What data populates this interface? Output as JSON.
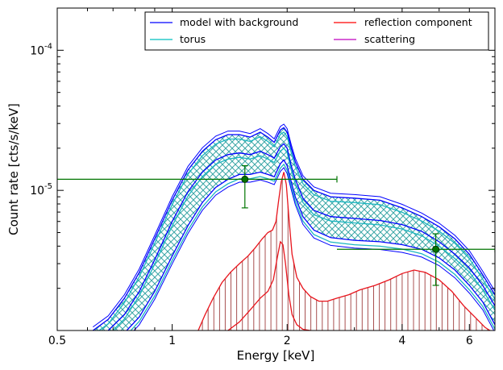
{
  "chart_data": {
    "type": "line",
    "xlabel": "Energy [keV]",
    "ylabel": "Count rate [cts/s/keV]",
    "x_scale": "log",
    "y_scale": "log",
    "xlim": [
      0.5,
      7.0
    ],
    "ylim": [
      1e-06,
      0.0002
    ],
    "x_ticks": [
      {
        "value": 0.5,
        "label": "0.5"
      },
      {
        "value": 1,
        "label": "1"
      },
      {
        "value": 2,
        "label": "2"
      },
      {
        "value": 4,
        "label": "4"
      },
      {
        "value": 6,
        "label": "6"
      }
    ],
    "y_ticks": [
      {
        "value": 1e-05,
        "mant": "10",
        "exp": "-5"
      },
      {
        "value": 0.0001,
        "mant": "10",
        "exp": "-4"
      }
    ],
    "legend": {
      "placement": "top-right",
      "columns": 2,
      "entries": [
        {
          "label": "model with background",
          "color": "#0000ff"
        },
        {
          "label": "reflection component",
          "color": "#ff0000"
        },
        {
          "label": "torus",
          "color": "#00bfbf"
        },
        {
          "label": "scattering",
          "color": "#bf00bf"
        }
      ]
    },
    "colors": {
      "model": "#0000ff",
      "torus": "#1ab6c0",
      "reflection": "#e8141c",
      "reflection_fill": "#a85050",
      "hatch": "#3aa6a6",
      "data": "#007500"
    },
    "series": [
      {
        "name": "model with background",
        "role": "upper",
        "x": [
          0.62,
          0.68,
          0.75,
          0.82,
          0.9,
          1.0,
          1.1,
          1.2,
          1.3,
          1.4,
          1.5,
          1.6,
          1.7,
          1.78,
          1.85,
          1.92,
          1.96,
          2.0,
          2.05,
          2.1,
          2.2,
          2.35,
          2.6,
          3.0,
          3.5,
          4.0,
          4.5,
          5.0,
          5.5,
          6.0,
          6.5,
          7.0
        ],
        "y": [
          1e-06,
          1.2e-06,
          1.7e-06,
          2.6e-06,
          4.5e-06,
          8.5e-06,
          1.4e-05,
          1.9e-05,
          2.3e-05,
          2.5e-05,
          2.5e-05,
          2.4e-05,
          2.6e-05,
          2.4e-05,
          2.2e-05,
          2.7e-05,
          2.8e-05,
          2.6e-05,
          2e-05,
          1.6e-05,
          1.2e-05,
          1e-05,
          9e-06,
          8.8e-06,
          8.5e-06,
          7.5e-06,
          6.5e-06,
          5.5e-06,
          4.5e-06,
          3.5e-06,
          2.5e-06,
          1.8e-06
        ]
      },
      {
        "name": "model with background",
        "role": "lower",
        "x": [
          0.76,
          0.82,
          0.9,
          1.0,
          1.1,
          1.2,
          1.3,
          1.4,
          1.5,
          1.6,
          1.7,
          1.78,
          1.85,
          1.92,
          1.96,
          2.0,
          2.05,
          2.1,
          2.2,
          2.35,
          2.6,
          3.0,
          3.5,
          4.0,
          4.5,
          5.0,
          5.5,
          6.0,
          6.5,
          7.0
        ],
        "y": [
          1e-06,
          1.25e-06,
          1.9e-06,
          3.4e-06,
          5.6e-06,
          8.2e-06,
          1.05e-05,
          1.2e-05,
          1.3e-05,
          1.3e-05,
          1.35e-05,
          1.3e-05,
          1.25e-05,
          1.55e-05,
          1.65e-05,
          1.5e-05,
          1.15e-05,
          9e-06,
          6.5e-06,
          5.2e-06,
          4.6e-06,
          4.4e-06,
          4.3e-06,
          4.1e-06,
          3.8e-06,
          3.3e-06,
          2.7e-06,
          2.1e-06,
          1.6e-06,
          1.1e-06
        ]
      },
      {
        "name": "model with background",
        "role": "middle",
        "x": [
          0.68,
          0.75,
          0.82,
          0.9,
          1.0,
          1.1,
          1.2,
          1.3,
          1.4,
          1.5,
          1.6,
          1.7,
          1.78,
          1.85,
          1.92,
          1.96,
          2.0,
          2.05,
          2.1,
          2.2,
          2.35,
          2.6,
          3.0,
          3.5,
          4.0,
          4.5,
          5.0,
          5.5,
          6.0,
          6.5,
          7.0
        ],
        "y": [
          1e-06,
          1.3e-06,
          1.9e-06,
          3.2e-06,
          6e-06,
          9.8e-06,
          1.35e-05,
          1.65e-05,
          1.8e-05,
          1.85e-05,
          1.8e-05,
          1.9e-05,
          1.8e-05,
          1.7e-05,
          2.05e-05,
          2.15e-05,
          2e-05,
          1.5e-05,
          1.2e-05,
          8.8e-06,
          7.2e-06,
          6.5e-06,
          6.3e-06,
          6.1e-06,
          5.7e-06,
          5.1e-06,
          4.3e-06,
          3.5e-06,
          2.8e-06,
          2.1e-06,
          1.5e-06
        ]
      },
      {
        "name": "reflection component",
        "x": [
          1.17,
          1.22,
          1.28,
          1.35,
          1.42,
          1.5,
          1.58,
          1.65,
          1.72,
          1.78,
          1.83,
          1.87,
          1.9,
          1.93,
          1.96,
          1.99,
          2.02,
          2.06,
          2.12,
          2.2,
          2.3,
          2.42,
          2.55,
          2.7,
          2.9,
          3.1,
          3.4,
          3.7,
          4.0,
          4.3,
          4.6,
          5.0,
          5.4,
          5.8,
          6.2,
          6.6,
          7.0
        ],
        "y": [
          1e-06,
          1.3e-06,
          1.7e-06,
          2.2e-06,
          2.6e-06,
          3e-06,
          3.4e-06,
          3.9e-06,
          4.5e-06,
          5e-06,
          5.2e-06,
          6e-06,
          8.5e-06,
          1.15e-05,
          1.35e-05,
          1.1e-05,
          6.5e-06,
          3.5e-06,
          2.4e-06,
          2e-06,
          1.75e-06,
          1.62e-06,
          1.62e-06,
          1.7e-06,
          1.8e-06,
          1.95e-06,
          2.1e-06,
          2.3e-06,
          2.55e-06,
          2.7e-06,
          2.6e-06,
          2.3e-06,
          1.9e-06,
          1.5e-06,
          1.25e-06,
          1.05e-06,
          9.5e-07
        ]
      },
      {
        "name": "reflection component",
        "role": "lower",
        "x": [
          1.4,
          1.5,
          1.6,
          1.7,
          1.78,
          1.84,
          1.88,
          1.92,
          1.95,
          1.98,
          2.02,
          2.06,
          2.12,
          2.2,
          2.3
        ],
        "y": [
          1e-06,
          1.15e-06,
          1.4e-06,
          1.7e-06,
          1.9e-06,
          2.3e-06,
          3.2e-06,
          4.3e-06,
          4.1e-06,
          3e-06,
          1.8e-06,
          1.3e-06,
          1.1e-06,
          1.02e-06,
          1e-06
        ]
      }
    ],
    "data_points": [
      {
        "x": 1.55,
        "y": 1.2e-05,
        "xerr": [
          0.5,
          2.7
        ],
        "yerr": [
          7.5e-06,
          1.5e-05
        ]
      },
      {
        "x": 4.9,
        "y": 3.8e-06,
        "xerr": [
          2.7,
          7.0
        ],
        "yerr": [
          2.1e-06,
          4.9e-06
        ]
      }
    ]
  }
}
